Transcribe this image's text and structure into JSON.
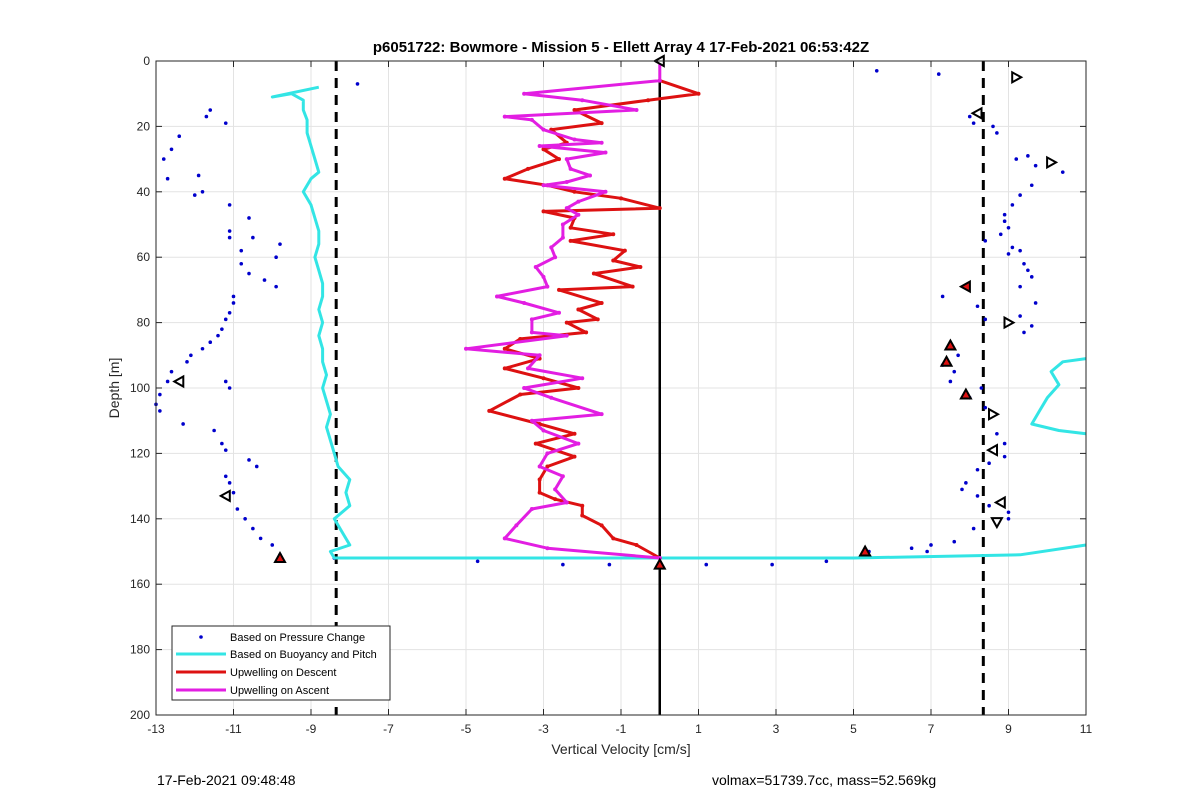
{
  "footer": {
    "left": "17-Feb-2021 09:48:48",
    "right": "volmax=51739.7cc, mass=52.569kg"
  },
  "chart_data": {
    "type": "line",
    "title": "p6051722: Bowmore - Mission 5 - Ellett Array 4 17-Feb-2021 06:53:42Z",
    "xlabel": "Vertical Velocity [cm/s]",
    "ylabel": "Depth [m]",
    "xlim": [
      -13,
      11
    ],
    "ylim": [
      0,
      200
    ],
    "y_reversed": true,
    "xticks": [
      -13,
      -11,
      -9,
      -7,
      -5,
      -3,
      -1,
      1,
      3,
      5,
      7,
      9,
      11
    ],
    "yticks": [
      0,
      20,
      40,
      60,
      80,
      100,
      120,
      140,
      160,
      180,
      200
    ],
    "grid": true,
    "legend_location": "bottom-left",
    "reference_lines": {
      "dashed_x": [
        -8.35,
        8.35
      ],
      "solid_x": [
        0
      ]
    },
    "series": [
      {
        "name": "Based on Pressure Change",
        "style": "dots",
        "color": "#0000CC",
        "points": [
          [
            -7.8,
            7
          ],
          [
            -11.6,
            15
          ],
          [
            -11.7,
            17
          ],
          [
            -11.2,
            19
          ],
          [
            -12.4,
            23
          ],
          [
            -12.6,
            27
          ],
          [
            -12.8,
            30
          ],
          [
            -11.9,
            35
          ],
          [
            -12.7,
            36
          ],
          [
            -12.0,
            41
          ],
          [
            -11.8,
            40
          ],
          [
            -11.1,
            44
          ],
          [
            -10.6,
            48
          ],
          [
            -11.1,
            52
          ],
          [
            -11.1,
            54
          ],
          [
            -10.5,
            54
          ],
          [
            -9.8,
            56
          ],
          [
            -10.8,
            58
          ],
          [
            -9.9,
            60
          ],
          [
            -10.8,
            62
          ],
          [
            -10.6,
            65
          ],
          [
            -10.2,
            67
          ],
          [
            -9.9,
            69
          ],
          [
            -11.0,
            72
          ],
          [
            -11.0,
            74
          ],
          [
            -11.1,
            77
          ],
          [
            -11.2,
            79
          ],
          [
            -11.3,
            82
          ],
          [
            -11.4,
            84
          ],
          [
            -11.6,
            86
          ],
          [
            -11.8,
            88
          ],
          [
            -12.1,
            90
          ],
          [
            -12.2,
            92
          ],
          [
            -12.6,
            95
          ],
          [
            -12.7,
            98
          ],
          [
            -11.2,
            98
          ],
          [
            -11.1,
            100
          ],
          [
            -12.9,
            102
          ],
          [
            -13.0,
            105
          ],
          [
            -12.9,
            107
          ],
          [
            -12.3,
            111
          ],
          [
            -11.5,
            113
          ],
          [
            -11.3,
            117
          ],
          [
            -11.2,
            119
          ],
          [
            -10.6,
            122
          ],
          [
            -10.4,
            124
          ],
          [
            -11.2,
            127
          ],
          [
            -11.1,
            129
          ],
          [
            -11.0,
            132
          ],
          [
            -10.9,
            137
          ],
          [
            -10.7,
            140
          ],
          [
            -10.5,
            143
          ],
          [
            -10.3,
            146
          ],
          [
            -10.0,
            148
          ],
          [
            -9.8,
            151
          ],
          [
            -8.4,
            152
          ],
          [
            -4.7,
            153
          ],
          [
            -2.5,
            154
          ],
          [
            -1.3,
            154
          ],
          [
            1.2,
            154
          ],
          [
            2.9,
            154
          ],
          [
            4.3,
            153
          ],
          [
            5.4,
            150
          ],
          [
            6.5,
            149
          ],
          [
            7.0,
            148
          ],
          [
            5.6,
            3
          ],
          [
            7.2,
            4
          ],
          [
            8.0,
            17
          ],
          [
            8.1,
            19
          ],
          [
            8.6,
            20
          ],
          [
            8.7,
            22
          ],
          [
            9.5,
            29
          ],
          [
            9.2,
            30
          ],
          [
            9.7,
            32
          ],
          [
            10.4,
            34
          ],
          [
            9.6,
            38
          ],
          [
            9.3,
            41
          ],
          [
            9.1,
            44
          ],
          [
            8.9,
            47
          ],
          [
            8.9,
            49
          ],
          [
            9.0,
            51
          ],
          [
            8.8,
            53
          ],
          [
            8.4,
            55
          ],
          [
            9.1,
            57
          ],
          [
            9.3,
            58
          ],
          [
            9.0,
            59
          ],
          [
            9.4,
            62
          ],
          [
            9.5,
            64
          ],
          [
            9.6,
            66
          ],
          [
            9.3,
            69
          ],
          [
            7.3,
            72
          ],
          [
            9.7,
            74
          ],
          [
            8.2,
            75
          ],
          [
            9.3,
            78
          ],
          [
            8.4,
            79
          ],
          [
            9.6,
            81
          ],
          [
            9.4,
            83
          ],
          [
            7.7,
            90
          ],
          [
            7.3,
            93
          ],
          [
            7.6,
            95
          ],
          [
            7.5,
            98
          ],
          [
            8.3,
            100
          ],
          [
            8.0,
            103
          ],
          [
            8.4,
            106
          ],
          [
            8.6,
            108
          ],
          [
            8.7,
            114
          ],
          [
            8.9,
            117
          ],
          [
            8.9,
            121
          ],
          [
            8.5,
            123
          ],
          [
            8.2,
            125
          ],
          [
            7.9,
            129
          ],
          [
            7.8,
            131
          ],
          [
            8.2,
            133
          ],
          [
            8.5,
            136
          ],
          [
            9.0,
            138
          ],
          [
            9.0,
            140
          ],
          [
            8.1,
            143
          ],
          [
            7.6,
            147
          ],
          [
            6.9,
            150
          ]
        ]
      },
      {
        "name": "Based on Buoyancy and Pitch",
        "style": "line",
        "color": "#33E5E5",
        "points": [
          [
            -8.8,
            8
          ],
          [
            -10.0,
            11
          ],
          [
            -9.5,
            10
          ],
          [
            -9.2,
            12
          ],
          [
            -9.2,
            15
          ],
          [
            -9.1,
            18
          ],
          [
            -9.1,
            22
          ],
          [
            -9.0,
            26
          ],
          [
            -8.9,
            30
          ],
          [
            -8.8,
            34
          ],
          [
            -9.0,
            36
          ],
          [
            -9.2,
            40
          ],
          [
            -9.0,
            44
          ],
          [
            -8.9,
            48
          ],
          [
            -8.8,
            52
          ],
          [
            -8.8,
            56
          ],
          [
            -8.9,
            60
          ],
          [
            -8.8,
            64
          ],
          [
            -8.7,
            68
          ],
          [
            -8.7,
            72
          ],
          [
            -8.8,
            76
          ],
          [
            -8.7,
            80
          ],
          [
            -8.8,
            84
          ],
          [
            -8.7,
            88
          ],
          [
            -8.7,
            92
          ],
          [
            -8.6,
            96
          ],
          [
            -8.7,
            100
          ],
          [
            -8.6,
            104
          ],
          [
            -8.5,
            108
          ],
          [
            -8.6,
            112
          ],
          [
            -8.5,
            116
          ],
          [
            -8.4,
            120
          ],
          [
            -8.3,
            124
          ],
          [
            -8.0,
            128
          ],
          [
            -8.1,
            132
          ],
          [
            -8.0,
            136
          ],
          [
            -8.4,
            140
          ],
          [
            -8.2,
            144
          ],
          [
            -8.0,
            148
          ],
          [
            -8.5,
            150
          ],
          [
            -8.4,
            152
          ],
          [
            0,
            152
          ],
          [
            5,
            152
          ],
          [
            9.3,
            151
          ],
          [
            11,
            148
          ]
        ]
      },
      {
        "name": "Based on Buoyancy and Pitch (segment 2)",
        "legend": false,
        "style": "line",
        "color": "#33E5E5",
        "points": [
          [
            11,
            91
          ],
          [
            10.4,
            92
          ],
          [
            10.1,
            95
          ],
          [
            10.3,
            99
          ],
          [
            10.0,
            103
          ],
          [
            9.8,
            107
          ],
          [
            9.6,
            111
          ],
          [
            10.3,
            113
          ],
          [
            11,
            114
          ]
        ]
      },
      {
        "name": "Upwelling on Descent",
        "style": "line-markers",
        "color": "#DD1111",
        "points": [
          [
            0,
            6
          ],
          [
            1.0,
            10
          ],
          [
            -0.3,
            12
          ],
          [
            -2.2,
            15
          ],
          [
            -1.5,
            19
          ],
          [
            -2.8,
            21
          ],
          [
            -2.4,
            25
          ],
          [
            -3.0,
            27
          ],
          [
            -2.6,
            30
          ],
          [
            -3.4,
            33
          ],
          [
            -4.0,
            36
          ],
          [
            -2.9,
            38
          ],
          [
            -2.2,
            40
          ],
          [
            -1.0,
            42
          ],
          [
            0,
            45
          ],
          [
            -3.0,
            46
          ],
          [
            -2.2,
            48
          ],
          [
            -2.3,
            51
          ],
          [
            -1.2,
            53
          ],
          [
            -2.3,
            55
          ],
          [
            -0.9,
            58
          ],
          [
            -1.2,
            61
          ],
          [
            -0.5,
            63
          ],
          [
            -1.7,
            65
          ],
          [
            -0.7,
            69
          ],
          [
            -2.6,
            70
          ],
          [
            -1.5,
            74
          ],
          [
            -2.1,
            76
          ],
          [
            -1.6,
            79
          ],
          [
            -2.4,
            80
          ],
          [
            -1.9,
            83
          ],
          [
            -3.6,
            85
          ],
          [
            -4.0,
            88
          ],
          [
            -3.1,
            91
          ],
          [
            -4.0,
            94
          ],
          [
            -3.0,
            97
          ],
          [
            -2.1,
            100
          ],
          [
            -3.6,
            102
          ],
          [
            -4.4,
            107
          ],
          [
            -3.1,
            111
          ],
          [
            -2.2,
            114
          ],
          [
            -3.2,
            117
          ],
          [
            -2.2,
            121
          ],
          [
            -2.9,
            124
          ],
          [
            -3.1,
            128
          ],
          [
            -3.1,
            132
          ],
          [
            -2.7,
            134
          ],
          [
            -2.0,
            136
          ],
          [
            -2.0,
            139
          ],
          [
            -1.5,
            142
          ],
          [
            -1.2,
            146
          ],
          [
            -0.6,
            148
          ],
          [
            0,
            152
          ]
        ]
      },
      {
        "name": "Upwelling on Ascent",
        "style": "line-markers",
        "color": "#E21EE2",
        "points": [
          [
            0,
            0
          ],
          [
            0,
            6
          ],
          [
            -3.5,
            10
          ],
          [
            -2.0,
            12
          ],
          [
            -0.6,
            15
          ],
          [
            -4.0,
            17
          ],
          [
            -3.3,
            18
          ],
          [
            -3.0,
            21
          ],
          [
            -2.2,
            24
          ],
          [
            -1.5,
            25
          ],
          [
            -3.1,
            26
          ],
          [
            -1.4,
            28
          ],
          [
            -2.4,
            30
          ],
          [
            -2.3,
            33
          ],
          [
            -1.8,
            35
          ],
          [
            -2.4,
            37
          ],
          [
            -3.0,
            38
          ],
          [
            -1.4,
            40
          ],
          [
            -2.1,
            43
          ],
          [
            -2.4,
            45
          ],
          [
            -2.1,
            47
          ],
          [
            -2.5,
            50
          ],
          [
            -2.5,
            54
          ],
          [
            -2.8,
            57
          ],
          [
            -2.7,
            60
          ],
          [
            -3.2,
            63
          ],
          [
            -3.0,
            66
          ],
          [
            -2.9,
            69
          ],
          [
            -4.2,
            72
          ],
          [
            -3.5,
            74
          ],
          [
            -2.6,
            77
          ],
          [
            -3.3,
            79
          ],
          [
            -3.3,
            83
          ],
          [
            -2.4,
            84
          ],
          [
            -5.0,
            88
          ],
          [
            -3.1,
            90
          ],
          [
            -3.4,
            94
          ],
          [
            -2.0,
            97
          ],
          [
            -3.5,
            100
          ],
          [
            -2.8,
            103
          ],
          [
            -1.5,
            108
          ],
          [
            -3.3,
            110
          ],
          [
            -3.0,
            113
          ],
          [
            -2.1,
            117
          ],
          [
            -2.9,
            120
          ],
          [
            -3.1,
            124
          ],
          [
            -2.5,
            127
          ],
          [
            -2.7,
            131
          ],
          [
            -2.4,
            135
          ],
          [
            -3.3,
            137
          ],
          [
            -3.7,
            142
          ],
          [
            -4.0,
            146
          ],
          [
            -2.9,
            149
          ],
          [
            0,
            152
          ]
        ]
      }
    ],
    "markers": [
      {
        "kind": "tri-left",
        "fill": "#FFFFFF",
        "points": [
          [
            0,
            0
          ],
          [
            -12.4,
            98
          ],
          [
            -11.2,
            133
          ],
          [
            8.6,
            119
          ],
          [
            8.8,
            135
          ],
          [
            8.2,
            16
          ]
        ]
      },
      {
        "kind": "tri-right",
        "fill": "#FFFFFF",
        "points": [
          [
            9.2,
            5
          ],
          [
            10.1,
            31
          ],
          [
            9.0,
            80
          ],
          [
            8.6,
            108
          ]
        ]
      },
      {
        "kind": "tri-down",
        "fill": "#FFFFFF",
        "points": [
          [
            8.7,
            141
          ]
        ]
      },
      {
        "kind": "tri-up",
        "fill": "#DD1111",
        "points": [
          [
            7.5,
            87
          ],
          [
            7.4,
            92
          ],
          [
            7.9,
            102
          ],
          [
            5.3,
            150
          ],
          [
            -9.8,
            152
          ],
          [
            0,
            154
          ]
        ]
      },
      {
        "kind": "tri-left",
        "fill": "#DD1111",
        "points": [
          [
            7.9,
            69
          ]
        ]
      }
    ]
  }
}
